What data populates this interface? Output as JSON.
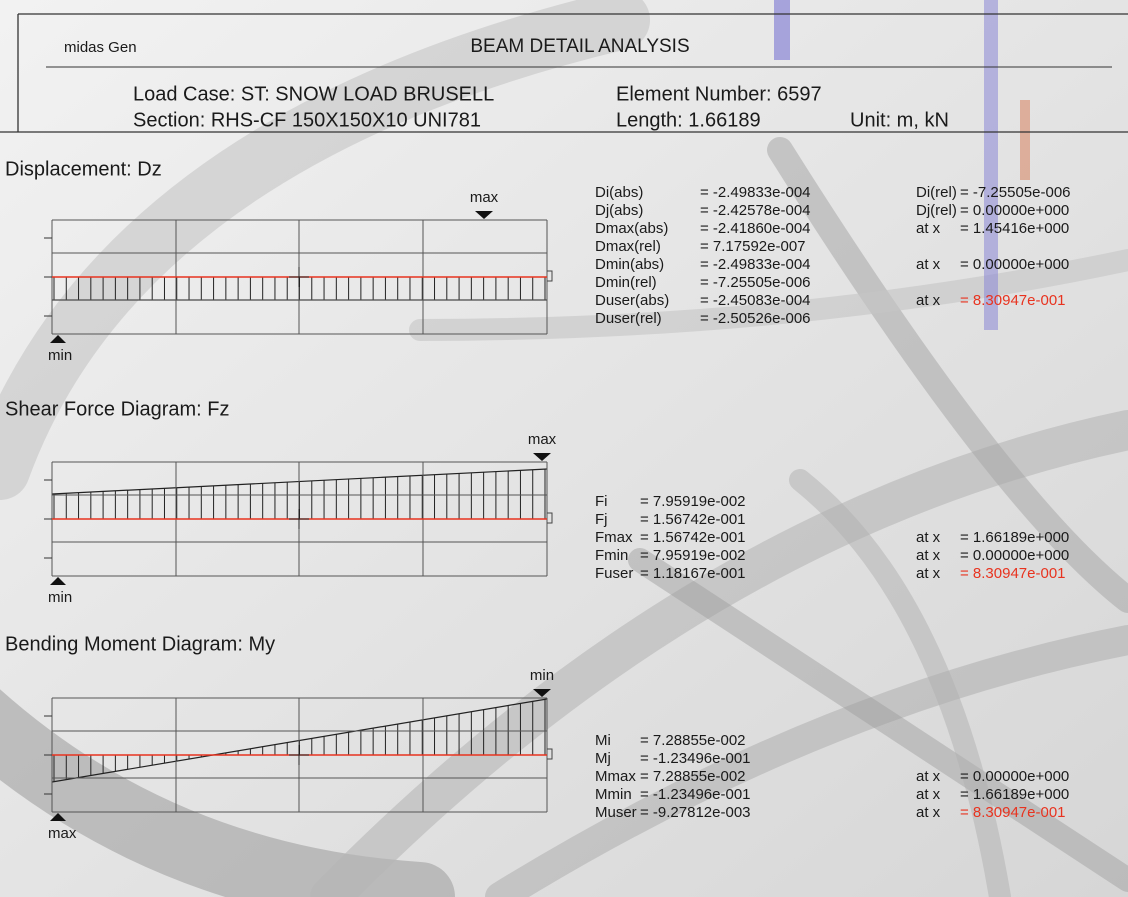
{
  "header": {
    "app": "midas Gen",
    "title": "BEAM DETAIL ANALYSIS",
    "load_case": "Load Case:  ST: SNOW LOAD BRUSELL",
    "section": "Section:  RHS-CF 150X150X10 UNI781",
    "element": "Element Number:  6597",
    "length": "Length:  1.66189",
    "unit": "Unit:  m,  kN"
  },
  "sections": [
    {
      "title": "Displacement: Dz",
      "top_marker": "max",
      "bottom_marker": "min",
      "rows": [
        {
          "label": "Di(abs)",
          "value": "= -2.49833e-004",
          "at": "Di(rel)",
          "at_value": "= -7.25505e-006"
        },
        {
          "label": "Dj(abs)",
          "value": "= -2.42578e-004",
          "at": "Dj(rel)",
          "at_value": "= 0.00000e+000"
        },
        {
          "label": "Dmax(abs)",
          "value": "= -2.41860e-004",
          "at": "at  x",
          "at_value": "= 1.45416e+000"
        },
        {
          "label": "Dmax(rel)",
          "value": "= 7.17592e-007"
        },
        {
          "label": "Dmin(abs)",
          "value": "= -2.49833e-004",
          "at": "at  x",
          "at_value": "= 0.00000e+000"
        },
        {
          "label": "Dmin(rel)",
          "value": "= -7.25505e-006"
        },
        {
          "label": "Duser(abs)",
          "value": "= -2.45083e-004",
          "at": "at  x",
          "at_value": "= 8.30947e-001",
          "color": "#e8331f"
        },
        {
          "label": "Duser(rel)",
          "value": "= -2.50526e-006"
        }
      ]
    },
    {
      "title": "Shear Force Diagram: Fz",
      "top_marker": "max",
      "bottom_marker": "min",
      "rows": [
        {
          "label": "Fi",
          "value": "= 7.95919e-002"
        },
        {
          "label": "Fj",
          "value": "= 1.56742e-001"
        },
        {
          "label": "Fmax",
          "value": "= 1.56742e-001",
          "at": "at x",
          "at_value": "= 1.66189e+000"
        },
        {
          "label": "Fmin",
          "value": "= 7.95919e-002",
          "at": "at x",
          "at_value": "= 0.00000e+000"
        },
        {
          "label": "Fuser",
          "value": "= 1.18167e-001",
          "at": "at x",
          "at_value": "= 8.30947e-001",
          "color": "#e8331f"
        }
      ]
    },
    {
      "title": "Bending Moment Diagram: My",
      "top_marker": "min",
      "bottom_marker": "max",
      "rows": [
        {
          "label": "Mi",
          "value": "= 7.28855e-002"
        },
        {
          "label": "Mj",
          "value": "= -1.23496e-001"
        },
        {
          "label": "Mmax",
          "value": "= 7.28855e-002",
          "at": "at x",
          "at_value": "= 0.00000e+000"
        },
        {
          "label": "Mmin",
          "value": "= -1.23496e-001",
          "at": "at x",
          "at_value": "= 1.66189e+000"
        },
        {
          "label": "Muser",
          "value": "= -9.27812e-003",
          "at": "at x",
          "at_value": "= 8.30947e-001",
          "color": "#e8331f"
        }
      ]
    }
  ]
}
